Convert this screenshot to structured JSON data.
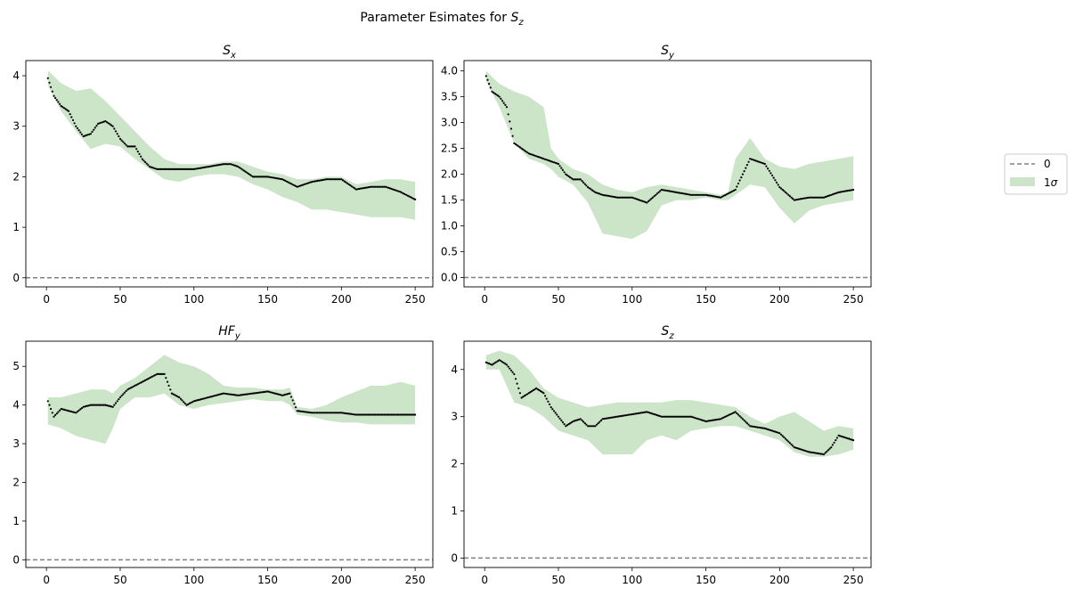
{
  "figure": {
    "title": "Parameter Esimates for S_z",
    "title_main": "Parameter Esimates for ",
    "title_sym": "S",
    "title_sub": "z"
  },
  "legend": {
    "items": [
      {
        "label": "0",
        "kind": "dashed-line",
        "color": "#808080"
      },
      {
        "label": "1σ",
        "label_main": "1",
        "label_sym": "σ",
        "kind": "patch",
        "color": "#cce4c8"
      }
    ],
    "placement": "right-center"
  },
  "colors": {
    "band": "#cce4c8",
    "points": "#000000",
    "zero_line": "#808080",
    "axes": "#000000"
  },
  "chart_data": [
    {
      "type": "line",
      "title": "S_x",
      "title_sym": "S",
      "title_sub": "x",
      "xlim": [
        -14,
        262
      ],
      "ylim": [
        -0.18,
        4.3
      ],
      "xticks": [
        0,
        50,
        100,
        150,
        200,
        250
      ],
      "yticks": [
        0,
        1,
        2,
        3,
        4
      ],
      "ytick_labels": [
        "0",
        "1",
        "2",
        "3",
        "4"
      ],
      "zero_line": 0,
      "grid": false,
      "estimate": {
        "x": [
          1,
          5,
          10,
          15,
          20,
          25,
          30,
          35,
          40,
          45,
          50,
          55,
          60,
          65,
          70,
          75,
          80,
          90,
          100,
          110,
          120,
          125,
          130,
          140,
          150,
          160,
          170,
          180,
          190,
          200,
          210,
          220,
          230,
          240,
          250
        ],
        "y": [
          3.95,
          3.6,
          3.4,
          3.3,
          3.0,
          2.8,
          2.85,
          3.05,
          3.1,
          3.0,
          2.75,
          2.6,
          2.6,
          2.35,
          2.2,
          2.15,
          2.15,
          2.15,
          2.15,
          2.2,
          2.25,
          2.25,
          2.2,
          2.0,
          2.0,
          1.95,
          1.8,
          1.9,
          1.95,
          1.95,
          1.75,
          1.8,
          1.8,
          1.7,
          1.55
        ]
      },
      "band": {
        "x": [
          1,
          10,
          20,
          30,
          40,
          50,
          60,
          70,
          80,
          90,
          100,
          110,
          120,
          130,
          140,
          150,
          160,
          170,
          180,
          190,
          200,
          210,
          220,
          230,
          240,
          250
        ],
        "upper": [
          4.1,
          3.85,
          3.7,
          3.75,
          3.5,
          3.2,
          2.9,
          2.6,
          2.35,
          2.25,
          2.25,
          2.25,
          2.3,
          2.3,
          2.2,
          2.1,
          2.05,
          1.95,
          1.95,
          2.0,
          2.0,
          1.85,
          1.9,
          1.95,
          1.95,
          1.9
        ],
        "lower": [
          3.8,
          3.3,
          2.9,
          2.55,
          2.65,
          2.6,
          2.35,
          2.15,
          1.95,
          1.9,
          2.0,
          2.05,
          2.05,
          2.0,
          1.85,
          1.75,
          1.6,
          1.5,
          1.35,
          1.35,
          1.3,
          1.25,
          1.2,
          1.2,
          1.2,
          1.15
        ]
      }
    },
    {
      "type": "line",
      "title": "S_y",
      "title_sym": "S",
      "title_sub": "y",
      "xlim": [
        -14,
        262
      ],
      "ylim": [
        -0.18,
        4.2
      ],
      "xticks": [
        0,
        50,
        100,
        150,
        200,
        250
      ],
      "yticks": [
        0,
        0.5,
        1,
        1.5,
        2,
        2.5,
        3,
        3.5,
        4
      ],
      "ytick_labels": [
        "0.0",
        "0.5",
        "1.0",
        "1.5",
        "2.0",
        "2.5",
        "3.0",
        "3.5",
        "4.0"
      ],
      "zero_line": 0,
      "grid": false,
      "estimate": {
        "x": [
          1,
          5,
          10,
          15,
          20,
          25,
          30,
          35,
          40,
          45,
          50,
          55,
          60,
          65,
          70,
          75,
          80,
          90,
          100,
          110,
          120,
          130,
          140,
          150,
          160,
          170,
          180,
          190,
          200,
          210,
          220,
          230,
          240,
          250
        ],
        "y": [
          3.9,
          3.6,
          3.5,
          3.3,
          2.6,
          2.5,
          2.4,
          2.35,
          2.3,
          2.25,
          2.2,
          2.0,
          1.9,
          1.9,
          1.75,
          1.65,
          1.6,
          1.55,
          1.55,
          1.45,
          1.7,
          1.65,
          1.6,
          1.6,
          1.55,
          1.7,
          2.3,
          2.2,
          1.75,
          1.5,
          1.55,
          1.55,
          1.65,
          1.7
        ]
      },
      "band": {
        "x": [
          1,
          10,
          20,
          30,
          40,
          45,
          50,
          60,
          70,
          80,
          90,
          100,
          110,
          120,
          130,
          140,
          150,
          160,
          165,
          170,
          180,
          190,
          200,
          210,
          220,
          230,
          240,
          250
        ],
        "upper": [
          4.0,
          3.75,
          3.6,
          3.5,
          3.3,
          2.5,
          2.3,
          2.1,
          2.0,
          1.8,
          1.7,
          1.65,
          1.75,
          1.8,
          1.75,
          1.7,
          1.65,
          1.6,
          1.65,
          2.3,
          2.7,
          2.3,
          2.15,
          2.1,
          2.2,
          2.25,
          2.3,
          2.35
        ],
        "lower": [
          3.8,
          3.3,
          2.6,
          2.3,
          2.2,
          2.1,
          1.95,
          1.8,
          1.45,
          0.85,
          0.8,
          0.75,
          0.9,
          1.4,
          1.5,
          1.5,
          1.55,
          1.5,
          1.5,
          1.6,
          1.8,
          1.75,
          1.35,
          1.05,
          1.3,
          1.4,
          1.45,
          1.5
        ]
      }
    },
    {
      "type": "line",
      "title": "HF_y",
      "title_sym": "HF",
      "title_sub": "y",
      "xlim": [
        -14,
        262
      ],
      "ylim": [
        -0.2,
        5.65
      ],
      "xticks": [
        0,
        50,
        100,
        150,
        200,
        250
      ],
      "yticks": [
        0,
        1,
        2,
        3,
        4,
        5
      ],
      "ytick_labels": [
        "0",
        "1",
        "2",
        "3",
        "4",
        "5"
      ],
      "zero_line": 0,
      "grid": false,
      "estimate": {
        "x": [
          1,
          5,
          10,
          15,
          20,
          25,
          30,
          35,
          40,
          45,
          50,
          55,
          60,
          65,
          70,
          75,
          80,
          85,
          90,
          95,
          100,
          110,
          120,
          130,
          140,
          150,
          160,
          165,
          170,
          180,
          190,
          200,
          210,
          220,
          230,
          240,
          250
        ],
        "y": [
          4.1,
          3.7,
          3.9,
          3.85,
          3.8,
          3.95,
          4.0,
          4.0,
          4.0,
          3.95,
          4.2,
          4.4,
          4.5,
          4.6,
          4.7,
          4.8,
          4.8,
          4.3,
          4.2,
          4.0,
          4.1,
          4.2,
          4.3,
          4.25,
          4.3,
          4.35,
          4.25,
          4.3,
          3.85,
          3.8,
          3.8,
          3.8,
          3.75,
          3.75,
          3.75,
          3.75,
          3.75
        ]
      },
      "band": {
        "x": [
          1,
          10,
          20,
          30,
          40,
          45,
          50,
          60,
          70,
          80,
          90,
          100,
          110,
          120,
          130,
          140,
          150,
          160,
          165,
          170,
          180,
          190,
          200,
          210,
          220,
          230,
          240,
          250
        ],
        "upper": [
          4.2,
          4.2,
          4.3,
          4.4,
          4.4,
          4.3,
          4.5,
          4.7,
          5.0,
          5.3,
          5.1,
          5.0,
          4.8,
          4.5,
          4.45,
          4.45,
          4.4,
          4.4,
          4.45,
          3.95,
          3.9,
          4.0,
          4.2,
          4.35,
          4.5,
          4.5,
          4.6,
          4.5
        ],
        "lower": [
          3.5,
          3.4,
          3.2,
          3.1,
          3.0,
          3.4,
          3.9,
          4.2,
          4.2,
          4.3,
          4.0,
          3.9,
          4.0,
          4.05,
          4.1,
          4.15,
          4.1,
          4.1,
          4.0,
          3.75,
          3.7,
          3.6,
          3.55,
          3.55,
          3.5,
          3.5,
          3.5,
          3.5
        ]
      }
    },
    {
      "type": "line",
      "title": "S_z",
      "title_sym": "S",
      "title_sub": "z",
      "xlim": [
        -14,
        262
      ],
      "ylim": [
        -0.2,
        4.6
      ],
      "xticks": [
        0,
        50,
        100,
        150,
        200,
        250
      ],
      "yticks": [
        0,
        1,
        2,
        3,
        4
      ],
      "ytick_labels": [
        "0",
        "1",
        "2",
        "3",
        "4"
      ],
      "zero_line": 0,
      "grid": false,
      "estimate": {
        "x": [
          1,
          5,
          10,
          15,
          20,
          25,
          30,
          35,
          40,
          45,
          50,
          55,
          60,
          65,
          70,
          75,
          80,
          90,
          100,
          110,
          120,
          130,
          140,
          150,
          160,
          170,
          180,
          190,
          200,
          210,
          220,
          230,
          235,
          240,
          245,
          250
        ],
        "y": [
          4.15,
          4.1,
          4.2,
          4.1,
          3.9,
          3.4,
          3.5,
          3.6,
          3.5,
          3.2,
          3.0,
          2.8,
          2.9,
          2.95,
          2.8,
          2.8,
          2.95,
          3.0,
          3.05,
          3.1,
          3.0,
          3.0,
          3.0,
          2.9,
          2.95,
          3.1,
          2.8,
          2.75,
          2.65,
          2.35,
          2.25,
          2.2,
          2.35,
          2.6,
          2.55,
          2.5
        ]
      },
      "band": {
        "x": [
          1,
          10,
          20,
          30,
          40,
          50,
          60,
          70,
          80,
          90,
          100,
          110,
          120,
          130,
          140,
          150,
          160,
          170,
          180,
          190,
          200,
          210,
          220,
          230,
          240,
          250
        ],
        "upper": [
          4.3,
          4.4,
          4.3,
          4.0,
          3.6,
          3.4,
          3.3,
          3.2,
          3.25,
          3.3,
          3.3,
          3.3,
          3.3,
          3.35,
          3.35,
          3.3,
          3.25,
          3.2,
          3.0,
          2.85,
          3.0,
          3.1,
          2.9,
          2.7,
          2.8,
          2.75
        ],
        "lower": [
          4.0,
          4.0,
          3.3,
          3.2,
          3.0,
          2.7,
          2.6,
          2.5,
          2.2,
          2.2,
          2.2,
          2.5,
          2.6,
          2.5,
          2.7,
          2.75,
          2.8,
          2.8,
          2.7,
          2.6,
          2.5,
          2.25,
          2.15,
          2.15,
          2.2,
          2.3
        ]
      }
    }
  ]
}
